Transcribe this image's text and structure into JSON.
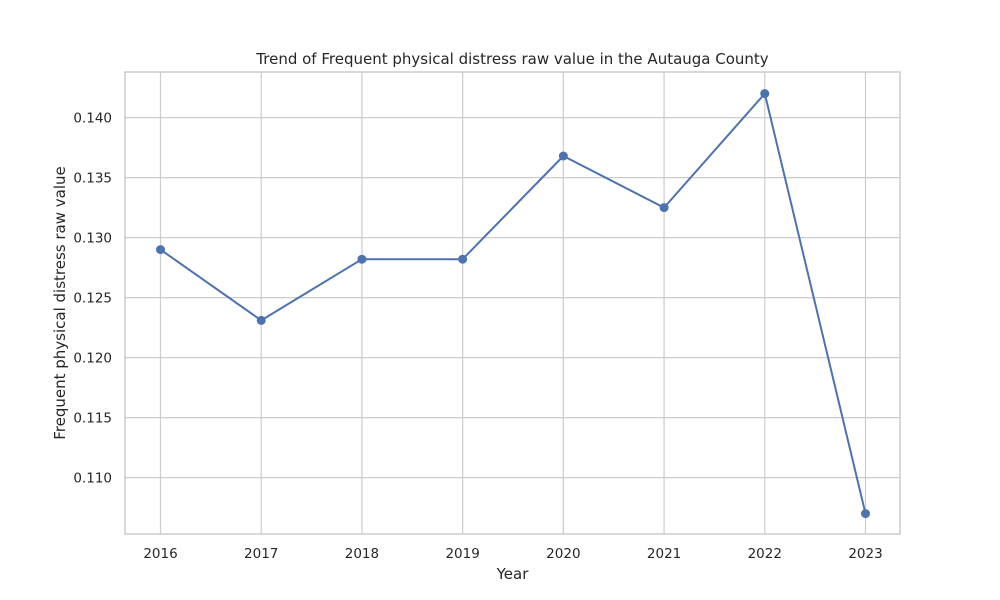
{
  "chart_data": {
    "type": "line",
    "title": "Trend of Frequent physical distress raw value in the Autauga County",
    "xlabel": "Year",
    "ylabel": "Frequent physical distress raw value",
    "x": [
      "2016",
      "2017",
      "2018",
      "2019",
      "2020",
      "2021",
      "2022",
      "2023"
    ],
    "series": [
      {
        "values": [
          0.129,
          0.1231,
          0.1282,
          0.1282,
          0.1368,
          0.1325,
          0.142,
          0.107
        ]
      }
    ],
    "yticks": [
      "0.110",
      "0.115",
      "0.120",
      "0.125",
      "0.130",
      "0.135",
      "0.140"
    ],
    "ylim": [
      0.1053,
      0.1438
    ],
    "grid": true,
    "legend": "none",
    "colors": {
      "line": "#4c72b0",
      "grid": "#cccccc",
      "text": "#262626"
    }
  }
}
